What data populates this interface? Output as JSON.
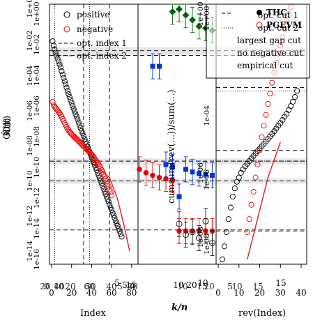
{
  "chart_data": [
    {
      "panel": "left",
      "type": "scatter",
      "xlabel": "Index",
      "ylabel": "t",
      "x_ticks": [
        "0",
        "20",
        "40",
        "60",
        "80"
      ],
      "xlim": [
        0,
        85
      ],
      "y_scale": "log",
      "legend": {
        "position": "top-right",
        "entries": [
          "positive",
          "negative",
          "opt. index 1",
          "opt. index 2"
        ]
      },
      "series": [
        {
          "name": "positive",
          "points": [
            [
              1,
              0.1
            ],
            [
              2,
              0.07
            ],
            [
              3,
              0.05
            ],
            [
              4,
              0.038
            ],
            [
              5,
              0.03
            ],
            [
              6,
              0.023
            ],
            [
              7,
              0.018
            ],
            [
              8,
              0.014
            ],
            [
              9,
              0.011
            ],
            [
              10,
              0.008
            ],
            [
              11,
              0.006
            ],
            [
              12,
              0.0045
            ],
            [
              13,
              0.0034
            ],
            [
              14,
              0.0026
            ],
            [
              15,
              0.002
            ],
            [
              16,
              0.0015
            ],
            [
              17,
              0.00115
            ],
            [
              18,
              0.0009
            ],
            [
              19,
              0.0007
            ],
            [
              20,
              0.00055
            ],
            [
              21,
              0.00043
            ],
            [
              22,
              0.00034
            ],
            [
              23,
              0.00027
            ],
            [
              24,
              0.00021
            ],
            [
              25,
              0.00017
            ],
            [
              26,
              0.000135
            ],
            [
              27,
              0.000105
            ],
            [
              28,
              8.3e-05
            ],
            [
              29,
              6.6e-05
            ],
            [
              30,
              5.2e-05
            ],
            [
              31,
              4.2e-05
            ],
            [
              32,
              3.3e-05
            ],
            [
              33,
              2.6e-05
            ],
            [
              34,
              2.1e-05
            ],
            [
              35,
              1.7e-05
            ],
            [
              36,
              1.35e-05
            ],
            [
              37,
              1.1e-05
            ],
            [
              38,
              8.8e-06
            ],
            [
              39,
              7e-06
            ],
            [
              40,
              5.6e-06
            ],
            [
              41,
              4.5e-06
            ],
            [
              42,
              3.6e-06
            ],
            [
              43,
              2.9e-06
            ],
            [
              44,
              2.3e-06
            ],
            [
              45,
              1.9e-06
            ],
            [
              46,
              1.5e-06
            ],
            [
              47,
              1.2e-06
            ],
            [
              48,
              9.6e-07
            ],
            [
              49,
              7.7e-07
            ],
            [
              50,
              6.1e-07
            ],
            [
              51,
              4.9e-07
            ],
            [
              52,
              3.9e-07
            ],
            [
              53,
              3.1e-07
            ],
            [
              54,
              2.5e-07
            ],
            [
              55,
              2e-07
            ],
            [
              56,
              1.6e-07
            ],
            [
              57,
              1.3e-07
            ],
            [
              58,
              1e-07
            ],
            [
              59,
              8e-08
            ],
            [
              60,
              6.5e-08
            ],
            [
              61,
              5.1e-08
            ],
            [
              62,
              4.1e-08
            ],
            [
              63,
              3.3e-08
            ],
            [
              64,
              2.6e-08
            ],
            [
              65,
              2.1e-08
            ],
            [
              66,
              1.7e-08
            ],
            [
              67,
              1.35e-08
            ],
            [
              68,
              1.1e-08
            ],
            [
              69,
              8.5e-09
            ],
            [
              70,
              6.8e-09
            ]
          ]
        },
        {
          "name": "negative",
          "points": [
            [
              1,
              0.0006
            ],
            [
              2,
              0.00045
            ],
            [
              3,
              0.0004
            ],
            [
              4,
              0.00036
            ],
            [
              5,
              0.00032
            ],
            [
              6,
              0.00029
            ],
            [
              7,
              0.00026
            ],
            [
              8,
              0.00023
            ],
            [
              9,
              0.0002
            ],
            [
              10,
              0.00017
            ],
            [
              11,
              0.00014
            ],
            [
              12,
              0.00012
            ],
            [
              13,
              0.0001
            ],
            [
              14,
              8.5e-05
            ],
            [
              15,
              7.2e-05
            ],
            [
              16,
              6.2e-05
            ],
            [
              17,
              5.4e-05
            ],
            [
              18,
              4.8e-05
            ],
            [
              19,
              4.3e-05
            ],
            [
              20,
              3.9e-05
            ],
            [
              21,
              3.6e-05
            ],
            [
              22,
              3.3e-05
            ],
            [
              23,
              3e-05
            ],
            [
              24,
              2.8e-05
            ],
            [
              25,
              2.6e-05
            ],
            [
              26,
              2.4e-05
            ],
            [
              27,
              2.2e-05
            ],
            [
              28,
              2e-05
            ],
            [
              29,
              1.85e-05
            ],
            [
              30,
              1.7e-05
            ],
            [
              31,
              1.55e-05
            ],
            [
              32,
              1.4e-05
            ],
            [
              33,
              1.3e-05
            ],
            [
              34,
              1.2e-05
            ],
            [
              35,
              1.1e-05
            ],
            [
              36,
              1e-05
            ],
            [
              37,
              9.2e-06
            ],
            [
              38,
              8.4e-06
            ],
            [
              39,
              7.7e-06
            ],
            [
              40,
              7e-06
            ],
            [
              41,
              6.3e-06
            ],
            [
              42,
              5.6e-06
            ],
            [
              43,
              5e-06
            ],
            [
              44,
              4.4e-06
            ],
            [
              45,
              3.9e-06
            ],
            [
              46,
              3.4e-06
            ],
            [
              47,
              3e-06
            ],
            [
              48,
              2.6e-06
            ],
            [
              49,
              2.2e-06
            ],
            [
              50,
              1.9e-06
            ],
            [
              51,
              1.6e-06
            ],
            [
              52,
              1.35e-06
            ],
            [
              53,
              1.1e-06
            ],
            [
              54,
              9e-07
            ],
            [
              55,
              7.3e-07
            ],
            [
              56,
              5.9e-07
            ],
            [
              57,
              4.7e-07
            ],
            [
              58,
              3.7e-07
            ],
            [
              59,
              2.9e-07
            ],
            [
              60,
              2.2e-07
            ]
          ]
        }
      ],
      "fitted_line": [
        [
          40,
          3.5e-06
        ],
        [
          58,
          1e-06
        ],
        [
          66,
          1.6e-07
        ],
        [
          72,
          2e-08
        ],
        [
          78,
          2e-09
        ]
      ],
      "vlines": [
        {
          "x": 3,
          "style": "dotted"
        },
        {
          "x": 32,
          "style": "dashed"
        },
        {
          "x": 38,
          "style": "dotted"
        },
        {
          "x": 58,
          "style": "dashed"
        }
      ]
    },
    {
      "panel": "middle",
      "type": "scatter",
      "xlabel": "k/n",
      "ylabel": "cumsum(rev(...))/sum(...)",
      "x_ticks": [
        "5",
        "10",
        "15",
        "20",
        "5",
        "10",
        "15"
      ],
      "y_scale": "log",
      "bands": [
        [
          0.03,
          0.06
        ],
        [
          3e-06,
          5e-06
        ],
        [
          6e-07,
          9e-07
        ]
      ],
      "hlines": [
        0.045,
        0.03,
        4e-06,
        7.5e-07,
        1.2e-08
      ],
      "series": [
        {
          "name": "",
          "marker": "filled-circle",
          "color": "#ee0000",
          "points": [
            [
              1,
              2e-06
            ],
            [
              2,
              1.5e-06
            ],
            [
              3,
              1.2e-06
            ],
            [
              4,
              1e-06
            ],
            [
              5,
              9e-07
            ],
            [
              6,
              8e-07
            ],
            [
              7,
              1.1e-08
            ],
            [
              8,
              1.1e-08
            ],
            [
              9,
              1.1e-08
            ],
            [
              10,
              1.1e-08
            ],
            [
              11,
              1.1e-08
            ],
            [
              12,
              1.1e-08
            ]
          ]
        },
        {
          "name": "",
          "marker": "filled-square",
          "color": "#0033dd",
          "points": [
            [
              3,
              0.012
            ],
            [
              4,
              0.012
            ],
            [
              5,
              3e-06
            ],
            [
              6,
              2.5e-06
            ],
            [
              7,
              2e-07
            ],
            [
              8,
              2e-06
            ],
            [
              9,
              1.6e-06
            ],
            [
              10,
              1.4e-06
            ],
            [
              11,
              1.3e-06
            ],
            [
              12,
              1.2e-06
            ]
          ]
        },
        {
          "name": "",
          "marker": "filled-diamond",
          "color": "#006600",
          "points": [
            [
              6,
              1.2
            ],
            [
              7,
              1.5
            ],
            [
              8,
              0.9
            ],
            [
              9,
              0.6
            ],
            [
              10,
              0.35
            ],
            [
              11,
              0.3
            ],
            [
              12,
              0.25
            ]
          ]
        },
        {
          "name": "",
          "marker": "open-circle",
          "color": "#222222",
          "points": [
            [
              7,
              2e-08
            ],
            [
              8,
              8e-09
            ],
            [
              9,
              1e-08
            ],
            [
              10,
              6e-09
            ],
            [
              11,
              2.5e-08
            ],
            [
              12,
              4e-09
            ]
          ]
        }
      ]
    },
    {
      "panel": "right",
      "type": "scatter",
      "xlabel": "rev(Index)",
      "x_ticks": [
        "0",
        "10",
        "20",
        "30",
        "40"
      ],
      "xlim": [
        0,
        42
      ],
      "y_ticks": [
        "1e+00",
        "1e-04",
        "1e-06",
        "1e-08"
      ],
      "y_scale": "log",
      "legend": [
        {
          "position": "top-right",
          "entries": [
            "THC",
            "PGEVM"
          ]
        },
        {
          "position": "top-right",
          "entries": [
            "opt. cut 1",
            "opt. cut 2",
            "largest gap cut",
            "no negative cut",
            "empirical cut"
          ]
        }
      ],
      "series": [
        {
          "name": "THC",
          "points": [
            [
              2,
              1e-09
            ],
            [
              3,
              3e-09
            ],
            [
              4,
              1e-08
            ],
            [
              5,
              3e-08
            ],
            [
              6,
              8e-08
            ],
            [
              7,
              2e-07
            ],
            [
              8,
              4e-07
            ],
            [
              9,
              7e-07
            ],
            [
              10,
              1e-06
            ],
            [
              11,
              1.5e-06
            ],
            [
              12,
              2e-06
            ],
            [
              13,
              2.6e-06
            ],
            [
              14,
              3.2e-06
            ],
            [
              15,
              4e-06
            ],
            [
              16,
              5e-06
            ],
            [
              17,
              6.2e-06
            ],
            [
              18,
              7.6e-06
            ],
            [
              19,
              9.3e-06
            ],
            [
              20,
              1.15e-05
            ],
            [
              21,
              1.4e-05
            ],
            [
              22,
              1.7e-05
            ],
            [
              23,
              2.1e-05
            ],
            [
              24,
              2.6e-05
            ],
            [
              25,
              3.2e-05
            ],
            [
              26,
              4e-05
            ],
            [
              27,
              5e-05
            ],
            [
              28,
              6.3e-05
            ],
            [
              29,
              8e-05
            ],
            [
              30,
              0.0001
            ],
            [
              31,
              0.00013
            ],
            [
              32,
              0.00017
            ],
            [
              33,
              0.00022
            ],
            [
              34,
              0.0003
            ],
            [
              35,
              0.00042
            ],
            [
              36,
              0.0006
            ],
            [
              37,
              0.0009
            ],
            [
              38,
              0.0015
            ]
          ]
        },
        {
          "name": "PGEVM",
          "points": [
            [
              14,
              1e-08
            ],
            [
              15,
              3e-08
            ],
            [
              16,
              1e-07
            ],
            [
              17,
              3e-07
            ],
            [
              18,
              1e-06
            ],
            [
              19,
              3e-06
            ],
            [
              20,
              1e-05
            ],
            [
              21,
              3e-05
            ],
            [
              22,
              8e-05
            ],
            [
              23,
              0.0002
            ],
            [
              24,
              0.0005
            ],
            [
              25,
              0.0012
            ],
            [
              26,
              0.003
            ],
            [
              27,
              0.007
            ],
            [
              28,
              0.016
            ],
            [
              29,
              0.035
            ],
            [
              30,
              0.07
            ],
            [
              31,
              0.14
            ],
            [
              32,
              0.28
            ],
            [
              33,
              0.55
            ],
            [
              34,
              1
            ],
            [
              35,
              1.8
            ]
          ]
        }
      ],
      "fitted_line": [
        [
          14,
          1e-09
        ],
        [
          24,
          1e-06
        ],
        [
          30,
          2e-05
        ]
      ],
      "hlines": [
        0.002,
        0.0015,
        1e-05,
        4e-06,
        1.1e-08
      ]
    }
  ],
  "overlap_text": {
    "left_ylabel_fragments": [
      "O(t)",
      "Ĥ(t)",
      "G(t)"
    ],
    "left_y_ticks": [
      "1e-16",
      "1e-14",
      "1e-12",
      "1e-10",
      "1e-08",
      "1e-06",
      "1e-04",
      "1e-02",
      "1e+00",
      "1e-14",
      "1e-12",
      "1e-10",
      "1e-08",
      "1e-06",
      "1e-04",
      "1e-02",
      "1e+00"
    ],
    "right_y_fragments": [
      "1e+00",
      "1e-06",
      "1e-08"
    ],
    "bottom_x_fragments": [
      "0",
      "10",
      "20",
      "30",
      "40",
      "0",
      "20",
      "40",
      "60",
      "80",
      "5",
      "10",
      "15",
      "20",
      "5",
      "10",
      "15"
    ],
    "middle_ylabel": "cumsum(rev(...))/sum(...)"
  }
}
